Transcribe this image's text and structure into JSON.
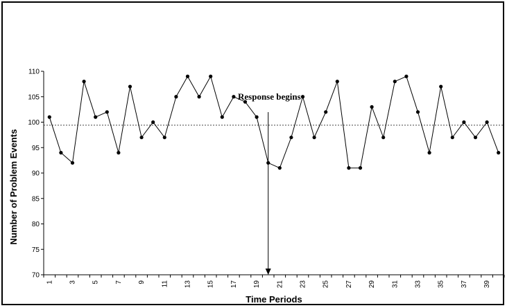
{
  "chart_data": {
    "type": "line",
    "title": "",
    "xlabel": "Time Periods",
    "ylabel": "Number of Problem Events",
    "ylim": [
      70,
      110
    ],
    "yticks": [
      70,
      75,
      80,
      85,
      90,
      95,
      100,
      105,
      110
    ],
    "x": [
      1,
      2,
      3,
      4,
      5,
      6,
      7,
      8,
      9,
      10,
      11,
      12,
      13,
      14,
      15,
      16,
      17,
      18,
      19,
      20,
      21,
      22,
      23,
      24,
      25,
      26,
      27,
      28,
      29,
      30,
      31,
      32,
      33,
      34,
      35,
      36,
      37,
      38,
      39,
      40
    ],
    "xtick_labels": [
      "1",
      "3",
      "5",
      "7",
      "9",
      "11",
      "13",
      "15",
      "17",
      "19",
      "21",
      "23",
      "25",
      "27",
      "29",
      "31",
      "33",
      "35",
      "37",
      "39"
    ],
    "series": [
      {
        "values": [
          101,
          94,
          92,
          108,
          101,
          102,
          94,
          107,
          97,
          100,
          97,
          105,
          109,
          105,
          109,
          101,
          105,
          104,
          101,
          92,
          91,
          97,
          105,
          97,
          102,
          108,
          91,
          91,
          103,
          97,
          108,
          109,
          102,
          94,
          107,
          97,
          100,
          97,
          100,
          94
        ],
        "color": "#000000",
        "marker": "dot"
      }
    ],
    "reference_line": {
      "y": 99.4,
      "style": "dotted"
    },
    "annotation": {
      "text": "Response begins",
      "arrow_x": 20
    },
    "grid": false,
    "legend": "none"
  }
}
